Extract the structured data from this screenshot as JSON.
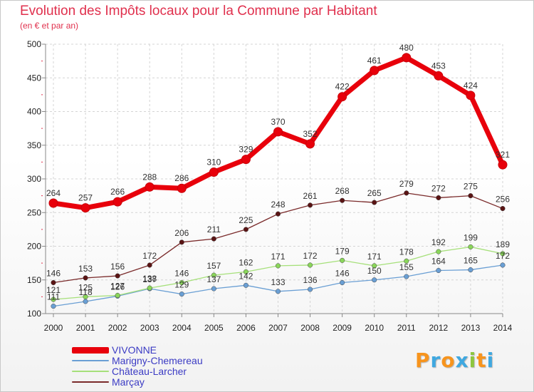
{
  "chart_data": {
    "type": "line",
    "title": "Evolution des Impôts locaux pour la Commune par Habitant",
    "subtitle": "(en € et par an)",
    "xlabel": "",
    "ylabel": "",
    "x": [
      "2000",
      "2001",
      "2002",
      "2003",
      "2004",
      "2005",
      "2006",
      "2007",
      "2008",
      "2009",
      "2010",
      "2011",
      "2012",
      "2013",
      "2014"
    ],
    "ylim": [
      100,
      500
    ],
    "yticks": [
      "100",
      "150",
      "200",
      "250",
      "300",
      "350",
      "400",
      "450",
      "500"
    ],
    "grid": true,
    "legend_position": "bottom-left",
    "series": [
      {
        "name": "VIVONNE",
        "color": "#e8000b",
        "values": [
          264,
          257,
          266,
          288,
          286,
          310,
          329,
          370,
          352,
          422,
          461,
          480,
          453,
          424,
          321
        ],
        "labels": [
          "264",
          "257",
          "266",
          "288",
          "286",
          "310",
          "329",
          "370",
          "352",
          "422",
          "461",
          "480",
          "453",
          "424",
          "321"
        ]
      },
      {
        "name": "Marigny-Chemereau",
        "color": "#6a9fd4",
        "values": [
          111,
          118,
          126,
          137,
          129,
          137,
          142,
          133,
          136,
          146,
          150,
          155,
          164,
          165,
          172
        ],
        "labels": [
          "111",
          "118",
          "126",
          "137",
          "129",
          "137",
          "142",
          "133",
          "136",
          "146",
          "150",
          "155",
          "164",
          "165",
          "172"
        ]
      },
      {
        "name": "Château-Larcher",
        "color": "#a6e07a",
        "values": [
          121,
          125,
          127,
          138,
          146,
          157,
          162,
          171,
          172,
          179,
          171,
          178,
          192,
          199,
          189
        ],
        "labels": [
          "121",
          "125",
          "127",
          "138",
          "146",
          "157",
          "162",
          "171",
          "172",
          "179",
          "171",
          "178",
          "192",
          "199",
          "189"
        ]
      },
      {
        "name": "Marçay",
        "color": "#7a2a2a",
        "values": [
          146,
          153,
          156,
          172,
          206,
          211,
          225,
          248,
          261,
          268,
          265,
          279,
          272,
          275,
          256
        ],
        "labels": [
          "146",
          "153",
          "156",
          "172",
          "206",
          "211",
          "225",
          "248",
          "261",
          "268",
          "265",
          "279",
          "272",
          "275",
          "256"
        ]
      }
    ]
  },
  "logo": {
    "letters": [
      "P",
      "r",
      "o",
      "x",
      "i",
      "t",
      "i"
    ],
    "colors": [
      "#f7941d",
      "#3fa8e0",
      "#f7941d",
      "#3fa8e0",
      "#8dc63f",
      "#f7941d",
      "#3fa8e0"
    ]
  }
}
